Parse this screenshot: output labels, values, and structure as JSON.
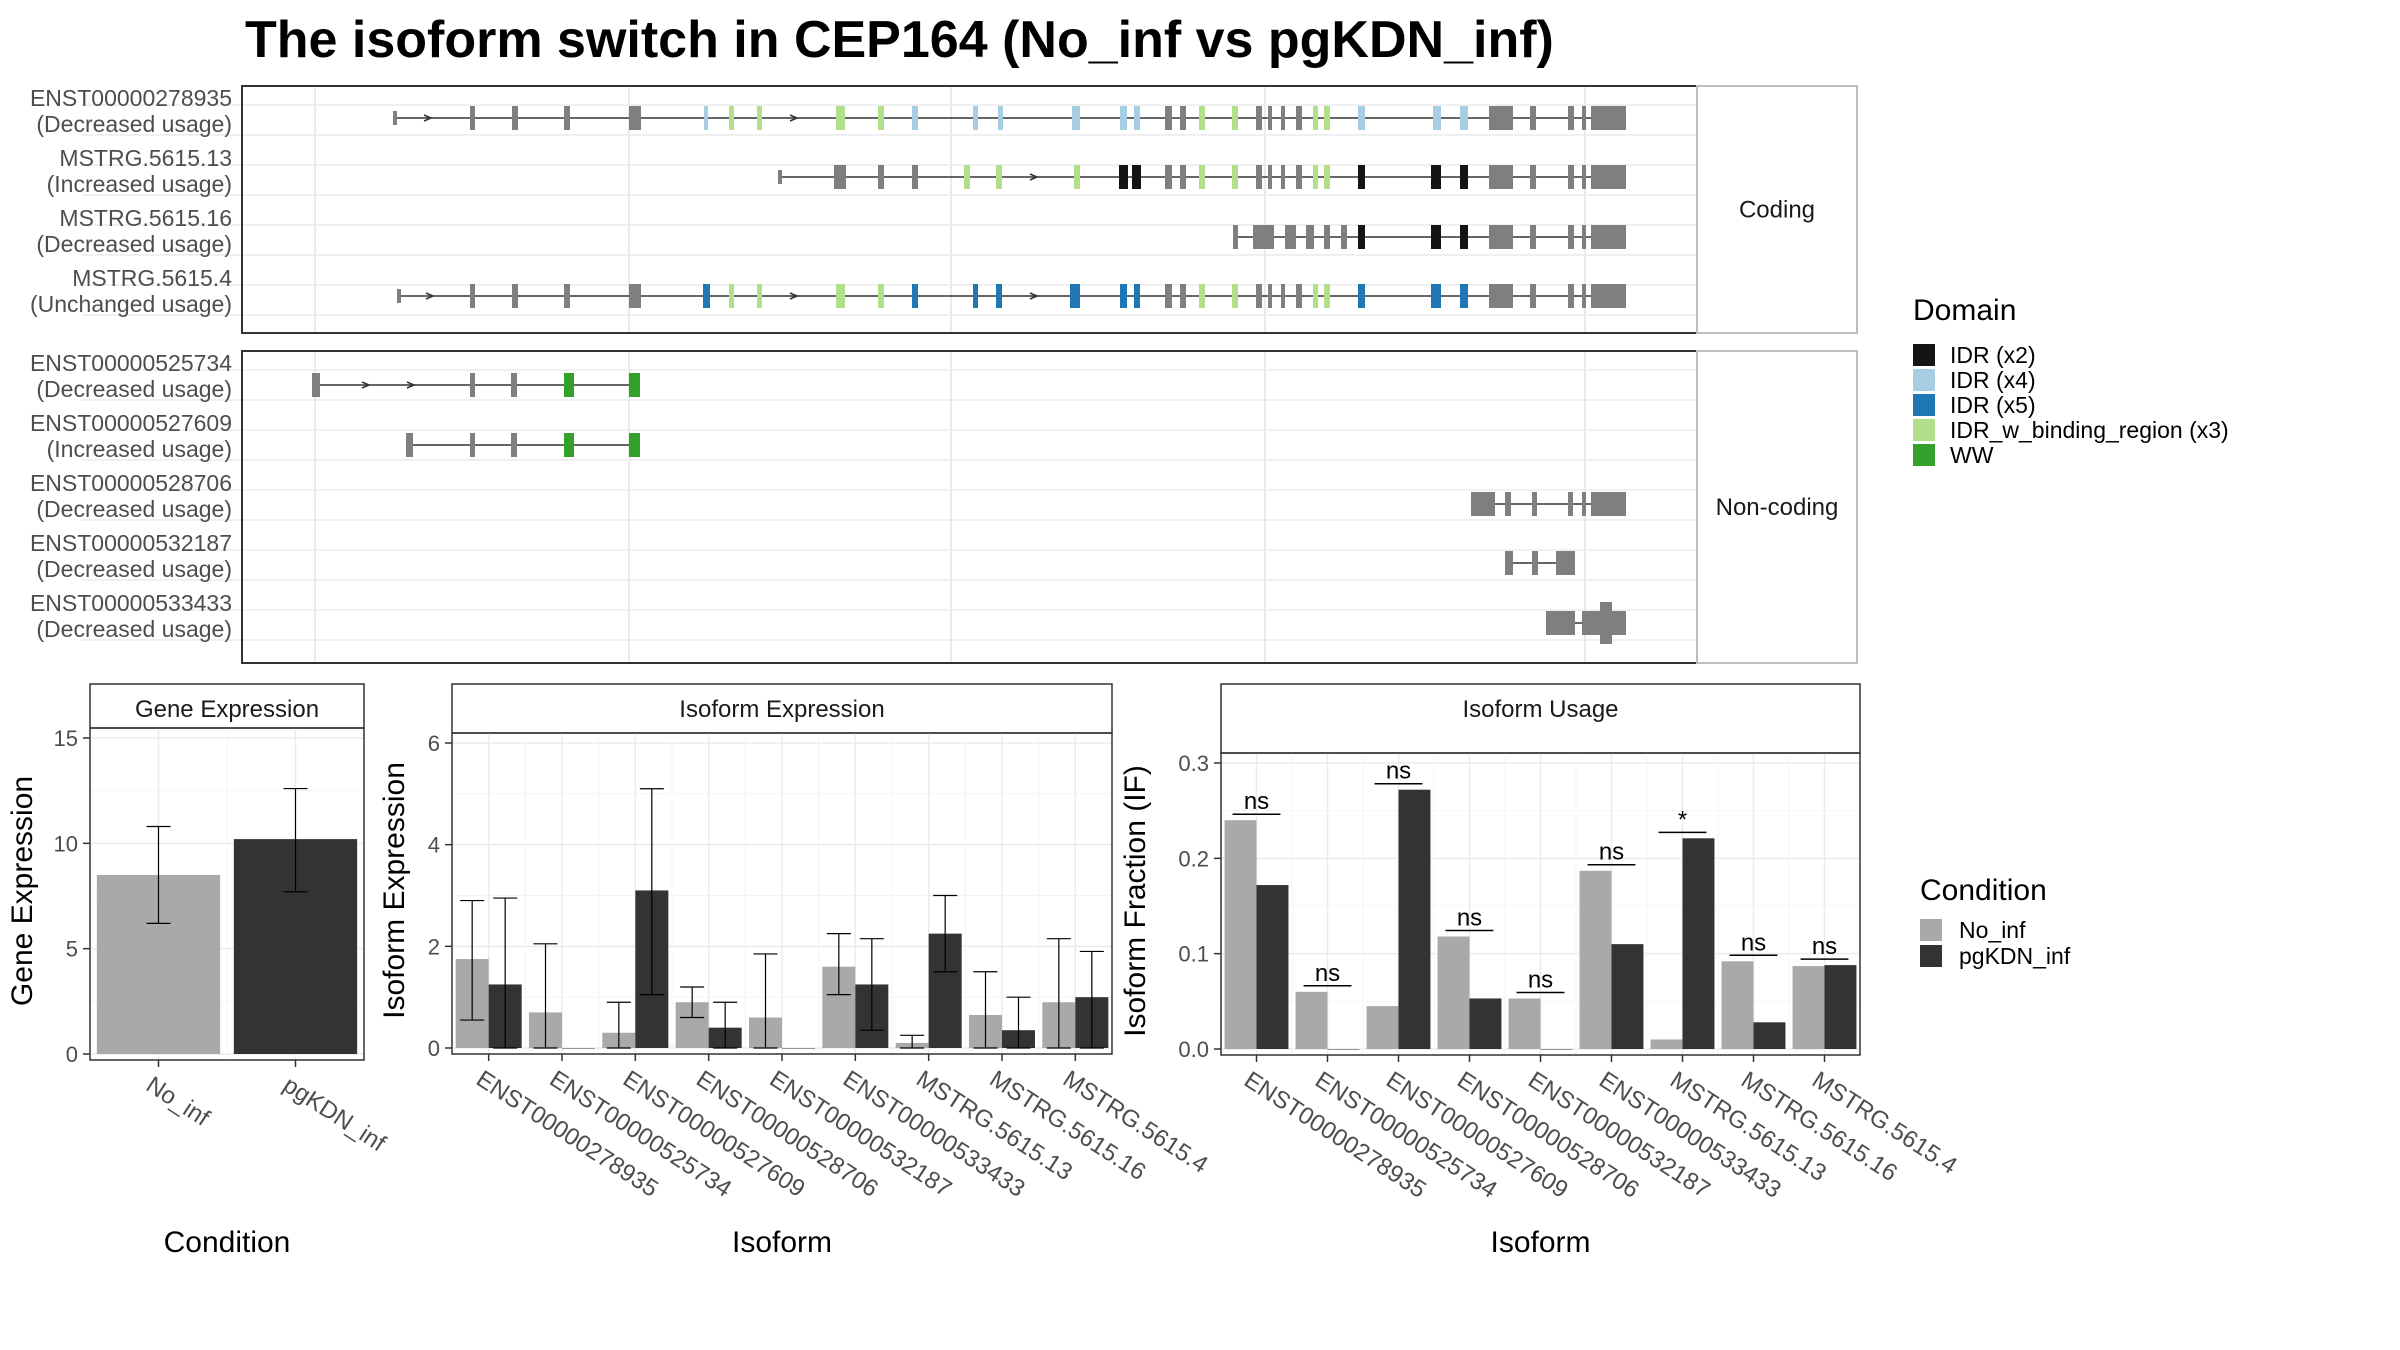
{
  "title": "The isoform switch in CEP164 (No_inf vs pgKDN_inf)",
  "transcripts": {
    "facets": [
      "Coding",
      "Non-coding"
    ],
    "coding": [
      {
        "id": "ENST00000278935",
        "note": "(Decreased usage)"
      },
      {
        "id": "MSTRG.5615.13",
        "note": "(Increased usage)"
      },
      {
        "id": "MSTRG.5615.16",
        "note": "(Decreased usage)"
      },
      {
        "id": "MSTRG.5615.4",
        "note": "(Unchanged usage)"
      }
    ],
    "noncoding": [
      {
        "id": "ENST00000525734",
        "note": "(Decreased usage)"
      },
      {
        "id": "ENST00000527609",
        "note": "(Increased usage)"
      },
      {
        "id": "ENST00000528706",
        "note": "(Decreased usage)"
      },
      {
        "id": "ENST00000532187",
        "note": "(Decreased usage)"
      },
      {
        "id": "ENST00000533433",
        "note": "(Decreased usage)"
      }
    ]
  },
  "domain_legend": {
    "title": "Domain",
    "items": [
      {
        "label": "IDR (x2)",
        "color": "#141414"
      },
      {
        "label": "IDR (x4)",
        "color": "#a6cde2"
      },
      {
        "label": "IDR (x5)",
        "color": "#1f78b4"
      },
      {
        "label": "IDR_w_binding_region (x3)",
        "color": "#b2df8a"
      },
      {
        "label": "WW",
        "color": "#33a02c"
      }
    ]
  },
  "condition_legend": {
    "title": "Condition",
    "items": [
      {
        "label": "No_inf",
        "color": "#a9a9a9"
      },
      {
        "label": "pgKDN_inf",
        "color": "#333333"
      }
    ]
  },
  "chart_data": [
    {
      "type": "bar",
      "title": "Gene Expression",
      "xlabel": "Condition",
      "ylabel": "Gene Expression",
      "ylim": [
        0,
        15
      ],
      "yticks": [
        0,
        5,
        10,
        15
      ],
      "categories": [
        "No_inf",
        "pgKDN_inf"
      ],
      "values": [
        8.5,
        10.2
      ],
      "errors": [
        [
          6.2,
          10.8
        ],
        [
          7.7,
          12.6
        ]
      ]
    },
    {
      "type": "bar",
      "title": "Isoform Expression",
      "xlabel": "Isoform",
      "ylabel": "Isoform Expression",
      "ylim": [
        0,
        6
      ],
      "yticks": [
        0,
        2,
        4,
        6
      ],
      "categories": [
        "ENST00000278935",
        "ENST00000525734",
        "ENST00000527609",
        "ENST00000528706",
        "ENST00000532187",
        "ENST00000533433",
        "MSTRG.5615.13",
        "MSTRG.5615.16",
        "MSTRG.5615.4"
      ],
      "series": [
        {
          "name": "No_inf",
          "values": [
            1.75,
            0.7,
            0.3,
            0.9,
            0.6,
            1.6,
            0.1,
            0.65,
            0.9
          ],
          "errors": [
            [
              0.55,
              2.9
            ],
            [
              0,
              2.05
            ],
            [
              0,
              0.9
            ],
            [
              0.6,
              1.2
            ],
            [
              0,
              1.85
            ],
            [
              1.05,
              2.25
            ],
            [
              0,
              0.25
            ],
            [
              0,
              1.5
            ],
            [
              0,
              2.15
            ]
          ]
        },
        {
          "name": "pgKDN_inf",
          "values": [
            1.25,
            0,
            3.1,
            0.4,
            0,
            1.25,
            2.25,
            0.35,
            1.0
          ],
          "errors": [
            [
              0,
              2.95
            ],
            null,
            [
              1.05,
              5.1
            ],
            [
              0,
              0.9
            ],
            null,
            [
              0.35,
              2.15
            ],
            [
              1.5,
              3.0
            ],
            [
              0,
              1.0
            ],
            [
              0,
              1.9
            ]
          ]
        }
      ]
    },
    {
      "type": "bar",
      "title": "Isoform Usage",
      "xlabel": "Isoform",
      "ylabel": "Isoform Fraction (IF)",
      "ylim": [
        0,
        0.3
      ],
      "yticks": [
        "0.0",
        "0.1",
        "0.2",
        "0.3"
      ],
      "categories": [
        "ENST00000278935",
        "ENST00000525734",
        "ENST00000527609",
        "ENST00000528706",
        "ENST00000532187",
        "ENST00000533433",
        "MSTRG.5615.13",
        "MSTRG.5615.16",
        "MSTRG.5615.4"
      ],
      "series": [
        {
          "name": "No_inf",
          "values": [
            0.24,
            0.06,
            0.045,
            0.118,
            0.053,
            0.187,
            0.01,
            0.092,
            0.087
          ]
        },
        {
          "name": "pgKDN_inf",
          "values": [
            0.172,
            0,
            0.272,
            0.053,
            0,
            0.11,
            0.221,
            0.028,
            0.088
          ]
        }
      ],
      "significance": [
        "ns",
        "ns",
        "ns",
        "ns",
        "ns",
        "ns",
        "*",
        "ns",
        "ns"
      ]
    }
  ]
}
